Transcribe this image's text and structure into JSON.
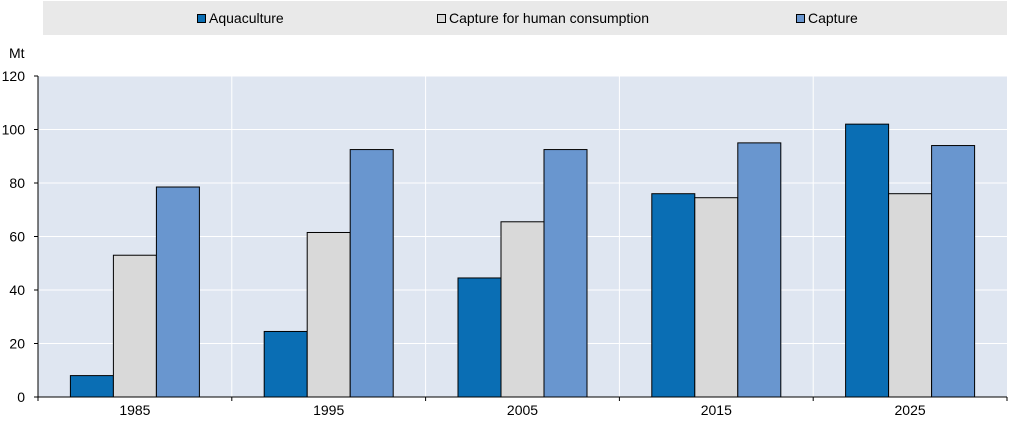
{
  "chart_data": {
    "type": "bar",
    "title": "",
    "xlabel": "",
    "ylabel": "Mt",
    "ylim": [
      0,
      120
    ],
    "yticks": [
      0,
      20,
      40,
      60,
      80,
      100,
      120
    ],
    "categories": [
      "1985",
      "1995",
      "2005",
      "2015",
      "2025"
    ],
    "series": [
      {
        "name": "Aquaculture",
        "color": "#0a6eb4",
        "values": [
          8,
          24.5,
          44.5,
          76,
          102
        ]
      },
      {
        "name": "Capture for human consumption",
        "color": "#d9d9d9",
        "values": [
          53,
          61.5,
          65.5,
          74.5,
          76
        ]
      },
      {
        "name": "Capture",
        "color": "#6996cf",
        "values": [
          78.5,
          92.5,
          92.5,
          95,
          94
        ]
      }
    ],
    "grid": true,
    "legend_position": "top"
  }
}
